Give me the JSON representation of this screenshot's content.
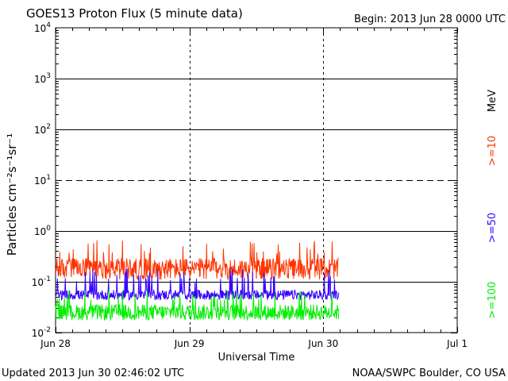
{
  "header": {
    "title": "GOES13 Proton Flux (5 minute data)",
    "begin": "Begin: 2013 Jun 28 0000 UTC"
  },
  "footer": {
    "updated": "Updated 2013 Jun 30 02:46:02 UTC",
    "credit": "NOAA/SWPC Boulder, CO USA"
  },
  "chart_data": {
    "type": "line",
    "title": "GOES13 Proton Flux (5 minute data)",
    "xlabel": "Universal Time",
    "ylabel": "Particles cm⁻²s⁻¹sr⁻¹",
    "yscale": "log",
    "ylim": [
      0.01,
      10000
    ],
    "xlim": [
      "2013-06-28 00:00",
      "2013-07-01 00:00"
    ],
    "x_ticks": [
      "Jun 28",
      "Jun 29",
      "Jun 30",
      "Jul 1"
    ],
    "y_ticks": [
      {
        "base": "10",
        "exp": "-2"
      },
      {
        "base": "10",
        "exp": "-1"
      },
      {
        "base": "10",
        "exp": "0"
      },
      {
        "base": "10",
        "exp": "1"
      },
      {
        "base": "10",
        "exp": "4"
      },
      {
        "base": "10",
        "exp": "3"
      },
      {
        "base": "10",
        "exp": "2"
      }
    ],
    "thresholds": [
      {
        "value": 10,
        "style": "dashed"
      }
    ],
    "gridlines": [
      0.1,
      1,
      100,
      1000
    ],
    "data_end": "2013-06-30 02:45",
    "unit_label": "MeV",
    "series": [
      {
        "name": ">=10",
        "color": "#ff3300",
        "min": 0.09,
        "typical": 0.18,
        "max": 0.7
      },
      {
        "name": ">=50",
        "color": "#3300ff",
        "min": 0.04,
        "typical": 0.055,
        "max": 0.18
      },
      {
        "name": ">=100",
        "color": "#00ee00",
        "min": 0.015,
        "typical": 0.025,
        "max": 0.07
      }
    ]
  }
}
